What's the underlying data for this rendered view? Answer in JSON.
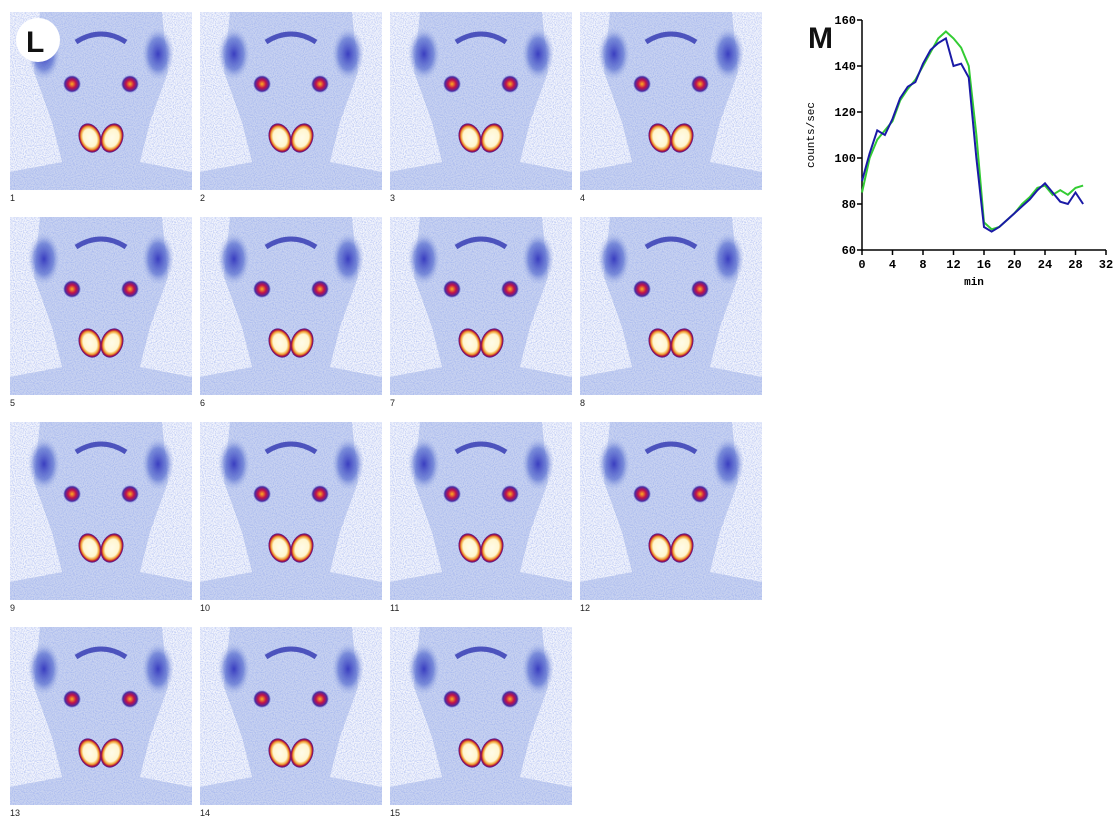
{
  "figure": {
    "left_label": "L",
    "right_label": "M",
    "frame_labels": [
      "1",
      "2",
      "3",
      "4",
      "5",
      "6",
      "7",
      "8",
      "9",
      "10",
      "11",
      "12",
      "13",
      "14",
      "15"
    ]
  },
  "chart_data": {
    "type": "line",
    "x_label": "min",
    "y_label": "counts/sec",
    "x": [
      0,
      1,
      2,
      3,
      4,
      5,
      6,
      7,
      8,
      9,
      10,
      11,
      12,
      13,
      14,
      15,
      16,
      17,
      18,
      19,
      20,
      21,
      22,
      23,
      24,
      25,
      26,
      27,
      28,
      29
    ],
    "series": [
      {
        "color": "#33cc33",
        "values": [
          85,
          100,
          108,
          112,
          116,
          125,
          130,
          134,
          140,
          146,
          152,
          155,
          152,
          148,
          140,
          110,
          72,
          69,
          70,
          73,
          76,
          80,
          83,
          87,
          88,
          84,
          86,
          84,
          87,
          88
        ]
      },
      {
        "color": "#1a1aa6",
        "values": [
          90,
          102,
          112,
          110,
          117,
          126,
          131,
          133,
          141,
          147,
          150,
          152,
          140,
          141,
          135,
          100,
          70,
          68,
          70,
          73,
          76,
          79,
          82,
          86,
          89,
          85,
          81,
          80,
          85,
          80
        ]
      }
    ],
    "xlim": [
      0,
      32
    ],
    "xticks": [
      0,
      4,
      8,
      12,
      16,
      20,
      24,
      28,
      32
    ],
    "ylim": [
      60,
      160
    ],
    "yticks": [
      60,
      80,
      100,
      120,
      140,
      160
    ]
  }
}
